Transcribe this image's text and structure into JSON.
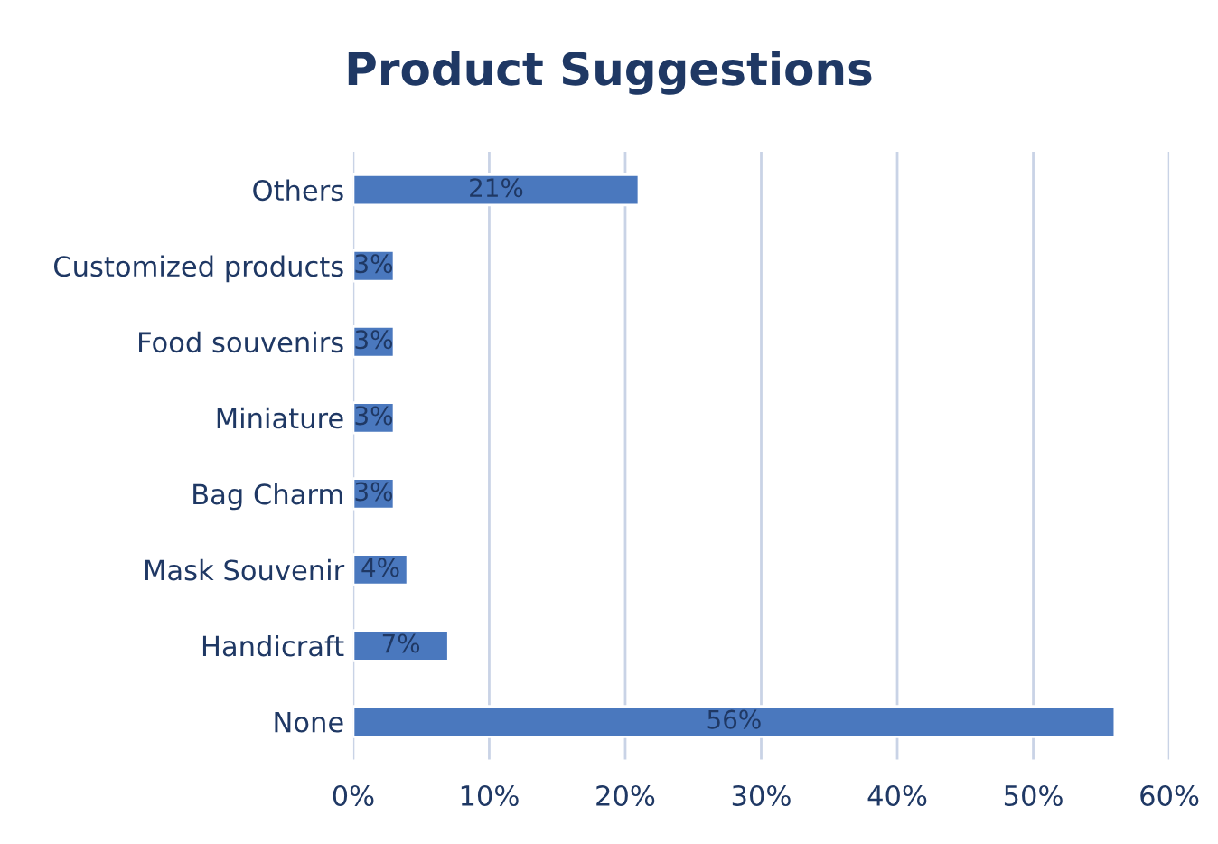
{
  "chart_data": {
    "type": "bar",
    "orientation": "horizontal",
    "title": "Product Suggestions",
    "categories": [
      "Others",
      "Customized products",
      "Food souvenirs",
      "Miniature",
      "Bag Charm",
      "Mask Souvenir",
      "Handicraft",
      "None"
    ],
    "values": [
      21,
      3,
      3,
      3,
      3,
      4,
      7,
      56
    ],
    "value_labels": [
      "21%",
      "3%",
      "3%",
      "3%",
      "3%",
      "4%",
      "7%",
      "56%"
    ],
    "color": "#4a78be",
    "xlim": [
      0,
      60
    ],
    "xticks": [
      {
        "value": 0,
        "label": "0%"
      },
      {
        "value": 10,
        "label": "10%"
      },
      {
        "value": 20,
        "label": "20%"
      },
      {
        "value": 30,
        "label": "30%"
      },
      {
        "value": 40,
        "label": "40%"
      },
      {
        "value": 50,
        "label": "50%"
      },
      {
        "value": 60,
        "label": "60%"
      }
    ],
    "grid": "x",
    "legend": false
  }
}
